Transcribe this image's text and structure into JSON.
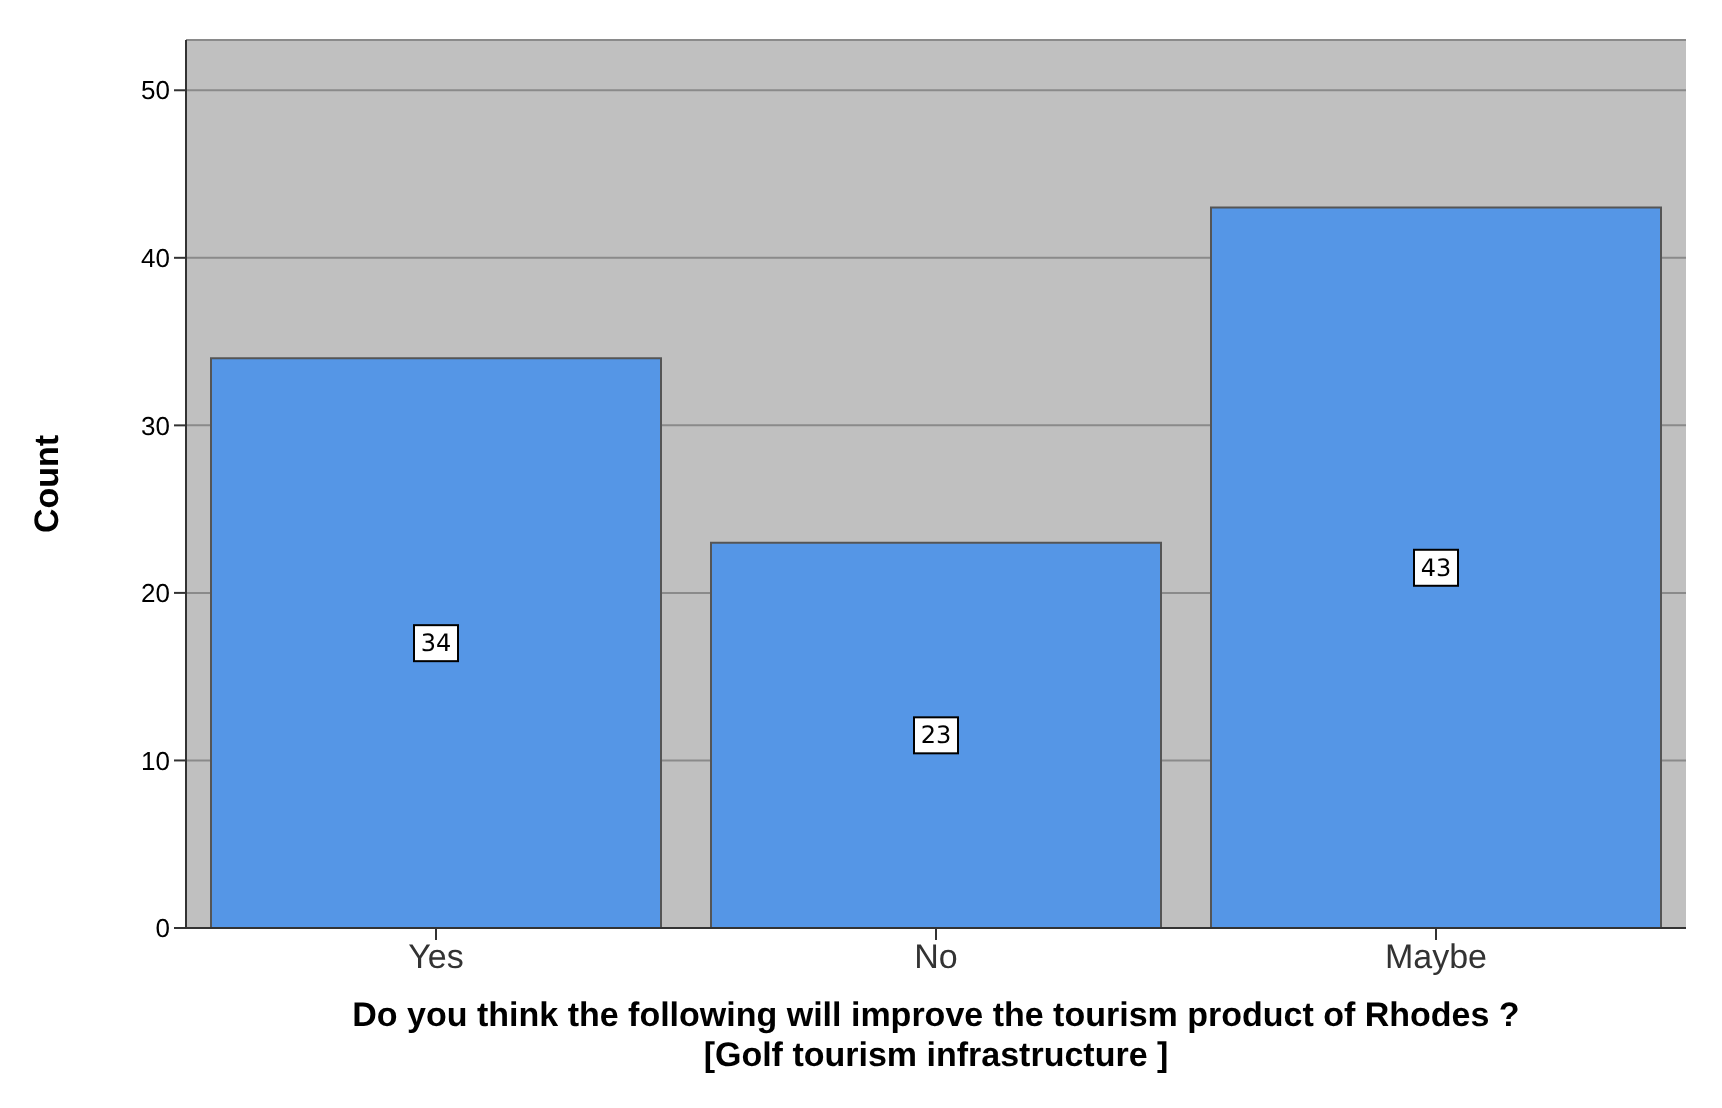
{
  "chart_data": {
    "type": "bar",
    "categories": [
      "Yes",
      "No",
      "Maybe"
    ],
    "values": [
      34,
      23,
      43
    ],
    "color": "#5596e6",
    "xlabel": "Do you think the following will improve the tourism product of Rhodes ?\n[Golf tourism infrastructure ]",
    "ylabel": "Count",
    "ylim": [
      0,
      53
    ],
    "yticks": [
      0,
      10,
      20,
      30,
      40,
      50
    ],
    "grid": "y",
    "data_labels": true
  }
}
